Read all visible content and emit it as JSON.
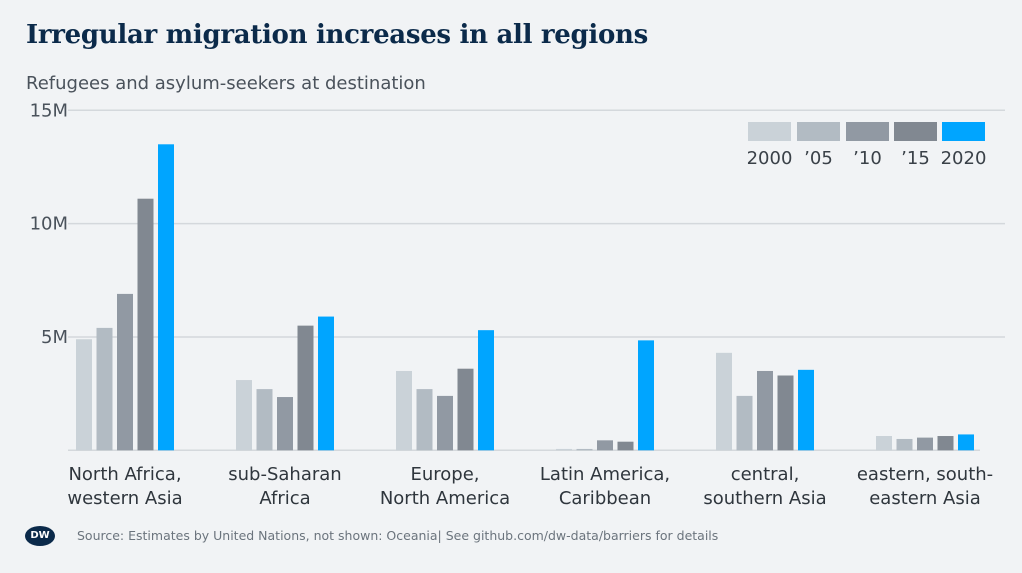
{
  "chart_data": {
    "type": "bar",
    "title": "Irregular migration increases in all regions",
    "subtitle": "Refugees and asylum-seekers at destination",
    "categories": [
      [
        "North Africa,",
        "western Asia"
      ],
      [
        "sub-Saharan",
        "Africa"
      ],
      [
        "Europe,",
        "North America"
      ],
      [
        "Latin America,",
        "Caribbean"
      ],
      [
        "central,",
        "southern Asia"
      ],
      [
        "eastern, south-",
        "eastern Asia"
      ]
    ],
    "series": [
      {
        "name": "2000",
        "color": "#cad2d8",
        "values": [
          4.9,
          3.1,
          3.5,
          0.06,
          4.3,
          0.63
        ]
      },
      {
        "name": "'05",
        "color": "#b2bbc3",
        "values": [
          5.4,
          2.7,
          2.7,
          0.06,
          2.4,
          0.5
        ]
      },
      {
        "name": "'10",
        "color": "#9199a3",
        "values": [
          6.9,
          2.35,
          2.4,
          0.44,
          3.5,
          0.56
        ]
      },
      {
        "name": "'15",
        "color": "#818891",
        "values": [
          11.1,
          5.5,
          3.6,
          0.38,
          3.3,
          0.63
        ]
      },
      {
        "name": "2020",
        "color": "#00a5ff",
        "values": [
          13.5,
          5.9,
          5.3,
          4.85,
          3.55,
          0.7
        ]
      }
    ],
    "legend_labels": [
      "2000",
      "’05",
      "’10",
      "’15",
      "2020"
    ],
    "yticks": [
      {
        "value": 5,
        "label": "5M"
      },
      {
        "value": 10,
        "label": "10M"
      },
      {
        "value": 15,
        "label": "15M"
      }
    ],
    "ylim": [
      0,
      15
    ],
    "yunit": "million",
    "grid": true,
    "legend_position": "top-right"
  },
  "footer": {
    "logo": "DW",
    "source": "Source: Estimates by United Nations, not shown: Oceania| See github.com/dw-data/barriers for details"
  }
}
